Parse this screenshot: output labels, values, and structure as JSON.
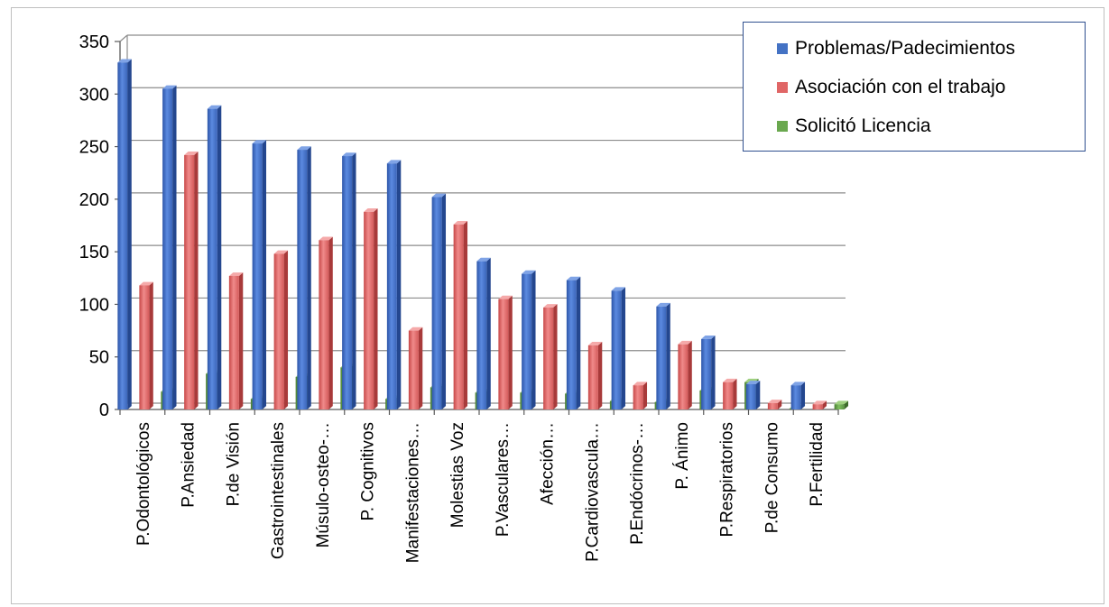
{
  "chart_data": {
    "type": "bar",
    "title": "",
    "xlabel": "",
    "ylabel": "",
    "ylim": [
      0,
      350
    ],
    "yticks": [
      0,
      50,
      100,
      150,
      200,
      250,
      300,
      350
    ],
    "grid": true,
    "legend_position": "top-right",
    "categories": [
      "P.Odontológicos",
      "P.Ansiedad",
      "P.de Visión",
      "Gastrointestinales",
      "Músulo-osteo-…",
      "P. Cognitivos",
      "Manifestaciones…",
      "Molestias Voz",
      "P.Vasculares…",
      "Afección…",
      "P.Cardiovascula…",
      "P.Endócrinos-…",
      "P. Ánimo",
      "P.Respiratorios",
      "P.de Consumo",
      "P.Fertilidad"
    ],
    "series": [
      {
        "name": "Problemas/Padecimientos",
        "color": "#4472c4",
        "values": [
          330,
          305,
          286,
          253,
          247,
          241,
          234,
          202,
          141,
          129,
          123,
          113,
          98,
          67,
          24,
          23
        ]
      },
      {
        "name": "Asociación con el trabajo",
        "color": "#e06666",
        "values": [
          118,
          242,
          127,
          148,
          161,
          188,
          75,
          176,
          105,
          97,
          61,
          23,
          62,
          26,
          6,
          5
        ]
      },
      {
        "name": "Solicitó Licencia",
        "color": "#6aa84f",
        "values": [
          17,
          34,
          10,
          31,
          40,
          10,
          21,
          16,
          16,
          15,
          8,
          7,
          18,
          26,
          1,
          5
        ]
      }
    ]
  }
}
